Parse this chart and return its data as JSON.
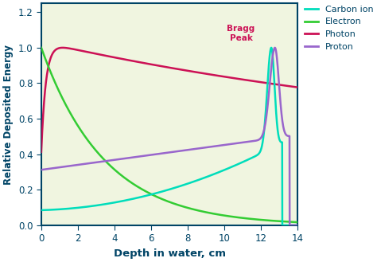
{
  "xlabel": "Depth in water, cm",
  "ylabel": "Relative Deposited Energy",
  "xlim": [
    0,
    14
  ],
  "ylim": [
    0,
    1.25
  ],
  "xticks": [
    0,
    2,
    4,
    6,
    8,
    10,
    12,
    14
  ],
  "yticks": [
    0.0,
    0.2,
    0.4,
    0.6,
    0.8,
    1.0,
    1.2
  ],
  "background_color": "#f0f5e0",
  "fig_color": "#ffffff",
  "legend_labels": [
    "Carbon ion",
    "Electron",
    "Photon",
    "Proton"
  ],
  "legend_colors": [
    "#00ddbb",
    "#33cc33",
    "#cc1155",
    "#9966cc"
  ],
  "bragg_peak_label": "Bragg\nPeak",
  "bragg_peak_color": "#cc1155",
  "line_colors": {
    "carbon": "#00ddbb",
    "electron": "#33cc33",
    "photon": "#cc1155",
    "proton": "#9966cc"
  },
  "axis_color": "#004466",
  "tick_color": "#004466",
  "label_color": "#004466"
}
